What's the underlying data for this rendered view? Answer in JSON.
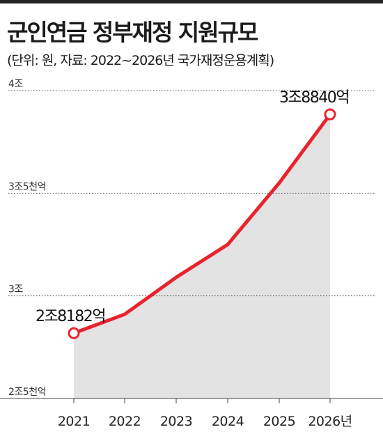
{
  "title": "군인연금 정부재정 지원규모",
  "subtitle": "(단위: 원,  자료: 2022~2026년 국가재정운용계획)",
  "colors": {
    "line": "#e8232c",
    "area": "#e3e3e3",
    "grid": "#555555",
    "marker_fill": "#ffffff"
  },
  "chart_data": {
    "type": "area",
    "title": "군인연금 정부재정 지원규모",
    "subtitle": "(단위: 원,  자료: 2022~2026년 국가재정운용계획)",
    "x": [
      "2021",
      "2022",
      "2023",
      "2024",
      "2025",
      "2026년"
    ],
    "series": [
      {
        "values": [
          28182,
          29100,
          30900,
          32500,
          35500,
          38840
        ]
      }
    ],
    "unit": "억원",
    "ylim": [
      25000,
      40000
    ],
    "yticks": [
      {
        "value": 40000,
        "label": "4조"
      },
      {
        "value": 35000,
        "label": "3조5천억"
      },
      {
        "value": 30000,
        "label": "3조"
      },
      {
        "value": 25000,
        "label": "2조5천억"
      }
    ],
    "annotations": [
      {
        "index": 0,
        "text": "2조8182억"
      },
      {
        "index": 5,
        "text": "3조8840억"
      }
    ],
    "grid": "horizontal dotted"
  }
}
